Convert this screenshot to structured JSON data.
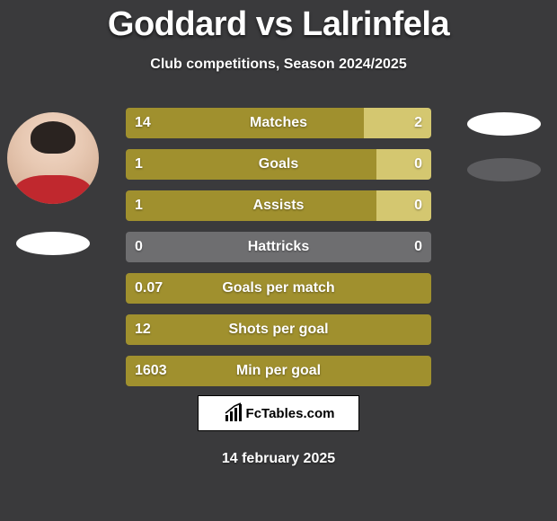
{
  "title_left": "Goddard",
  "title_vs": "vs",
  "title_right": "Lalrinfela",
  "subtitle": "Club competitions, Season 2024/2025",
  "date": "14 february 2025",
  "brand": "FcTables.com",
  "colors": {
    "olive": "#a0902e",
    "khaki": "#d4c770",
    "gray": "#6e6e70",
    "background": "#3a3a3c",
    "white": "#ffffff",
    "badge_gray": "#5d5d60"
  },
  "rows": [
    {
      "label": "Matches",
      "left_val": "14",
      "right_val": "2",
      "left_color": "#a0902e",
      "right_color": "#d4c770",
      "left_width_pct": 78,
      "right_width_pct": 22
    },
    {
      "label": "Goals",
      "left_val": "1",
      "right_val": "0",
      "left_color": "#a0902e",
      "right_color": "#d4c770",
      "left_width_pct": 82,
      "right_width_pct": 18
    },
    {
      "label": "Assists",
      "left_val": "1",
      "right_val": "0",
      "left_color": "#a0902e",
      "right_color": "#d4c770",
      "left_width_pct": 82,
      "right_width_pct": 18
    },
    {
      "label": "Hattricks",
      "left_val": "0",
      "right_val": "0",
      "left_color": "#6e6e70",
      "right_color": "#6e6e70",
      "left_width_pct": 50,
      "right_width_pct": 50
    },
    {
      "label": "Goals per match",
      "left_val": "0.07",
      "right_val": "",
      "left_color": "#a0902e",
      "right_color": "#a0902e",
      "left_width_pct": 100,
      "right_width_pct": 0
    },
    {
      "label": "Shots per goal",
      "left_val": "12",
      "right_val": "",
      "left_color": "#a0902e",
      "right_color": "#a0902e",
      "left_width_pct": 100,
      "right_width_pct": 0
    },
    {
      "label": "Min per goal",
      "left_val": "1603",
      "right_val": "",
      "left_color": "#a0902e",
      "right_color": "#a0902e",
      "left_width_pct": 100,
      "right_width_pct": 0
    }
  ]
}
